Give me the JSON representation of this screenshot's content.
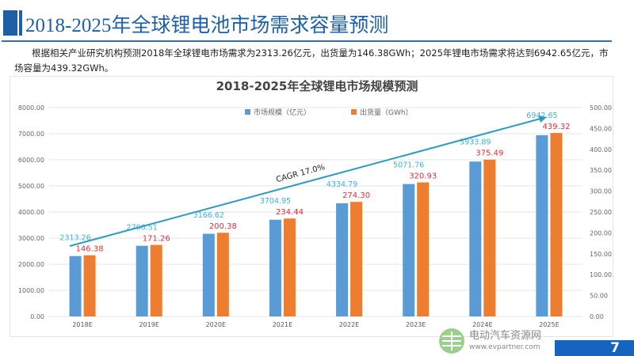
{
  "header": {
    "title": "2018-2025年全球锂电池市场需求容量预测"
  },
  "paragraph": "根据相关产业研究机构预测2018年全球锂电市场需求为2313.26亿元，出货量为146.38GWh；2025年锂电市场需求将达到6942.65亿元，市场容量为439.32GWh。",
  "chart_data": {
    "type": "bar",
    "title": "2018-2025年全球锂电市场规模预测",
    "categories": [
      "2018E",
      "2019E",
      "2020E",
      "2021E",
      "2022E",
      "2023E",
      "2024E",
      "2025E"
    ],
    "series": [
      {
        "name": "市场规模（亿元）",
        "axis": "left",
        "color": "#5b9bd5",
        "label_color": "#3fb0d8",
        "values": [
          2313.26,
          2706.51,
          3166.62,
          3704.95,
          4334.79,
          5071.76,
          5933.89,
          6942.65
        ]
      },
      {
        "name": "出货量（GWh）",
        "axis": "right",
        "color": "#ed7d31",
        "label_color": "#e0303a",
        "values": [
          146.38,
          171.26,
          200.38,
          234.44,
          274.3,
          320.93,
          375.49,
          439.32
        ]
      }
    ],
    "left_axis": {
      "ylim": [
        0,
        8000
      ],
      "ticks": [
        "0.00",
        "1000.00",
        "2000.00",
        "3000.00",
        "4000.00",
        "5000.00",
        "6000.00",
        "7000.00",
        "8000.00"
      ]
    },
    "right_axis": {
      "ylim": [
        0,
        500
      ],
      "ticks": [
        "0.00",
        "50.00",
        "100.00",
        "150.00",
        "200.00",
        "250.00",
        "300.00",
        "350.00",
        "400.00",
        "450.00",
        "500.00"
      ]
    },
    "annotation": "CAGR 17.0%",
    "legend": "top-center",
    "grid": true
  },
  "watermark": {
    "name": "电动汽车资源网",
    "url": "www.evpartner.com"
  },
  "page_number": "7"
}
